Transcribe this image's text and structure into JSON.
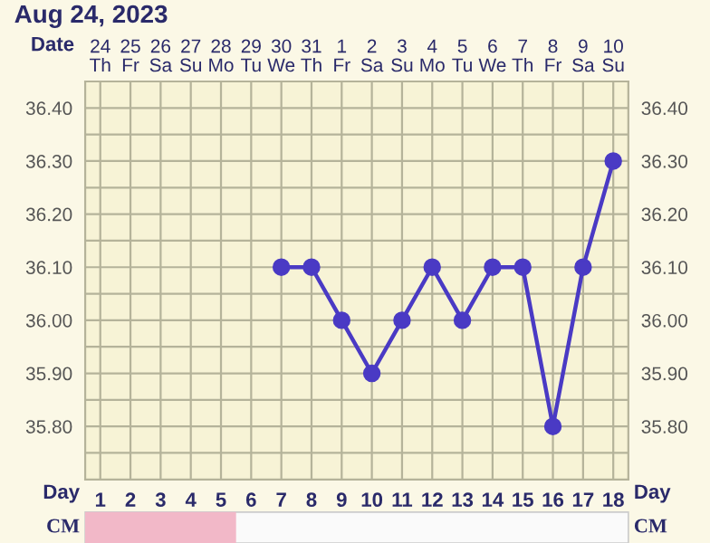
{
  "chart_data": {
    "type": "line",
    "title": "Aug 24, 2023",
    "xlabel": "Day",
    "categories": [
      "1",
      "2",
      "3",
      "4",
      "5",
      "6",
      "7",
      "8",
      "9",
      "10",
      "11",
      "12",
      "13",
      "14",
      "15",
      "16",
      "17",
      "18"
    ],
    "annotations": [
      "Date",
      "CM",
      "24\nTh",
      "25\nFr",
      "26\nSa",
      "27\nSu",
      "28\nMo",
      "29\nTu",
      "30\nWe",
      "31\nTh",
      "1\nFr",
      "2\nSa",
      "3\nSu",
      "4\nMo",
      "5\nTu",
      "6\nWe",
      "7\nTh",
      "8\nFr",
      "9\nSa",
      "10\nSu"
    ],
    "ylim": [
      35.7,
      36.45
    ],
    "yticks": [
      {
        "value": 35.75,
        "label": null
      },
      {
        "value": 35.8,
        "label": "35.80"
      },
      {
        "value": 35.85,
        "label": null
      },
      {
        "value": 35.9,
        "label": "35.90"
      },
      {
        "value": 35.95,
        "label": null
      },
      {
        "value": 36.0,
        "label": "36.00"
      },
      {
        "value": 36.05,
        "label": null
      },
      {
        "value": 36.1,
        "label": "36.10"
      },
      {
        "value": 36.15,
        "label": null
      },
      {
        "value": 36.2,
        "label": "36.20"
      },
      {
        "value": 36.25,
        "label": null
      },
      {
        "value": 36.3,
        "label": "36.30"
      },
      {
        "value": 36.35,
        "label": null
      },
      {
        "value": 36.4,
        "label": "36.40"
      }
    ],
    "y2lim": [
      35.7,
      36.45
    ],
    "y2ticks": [
      {
        "value": 35.75,
        "label": null
      },
      {
        "value": 35.8,
        "label": "35.80"
      },
      {
        "value": 35.85,
        "label": null
      },
      {
        "value": 35.9,
        "label": "35.90"
      },
      {
        "value": 35.95,
        "label": null
      },
      {
        "value": 36.0,
        "label": "36.00"
      },
      {
        "value": 36.05,
        "label": null
      },
      {
        "value": 36.1,
        "label": "36.10"
      },
      {
        "value": 36.15,
        "label": null
      },
      {
        "value": 36.2,
        "label": "36.20"
      },
      {
        "value": 36.25,
        "label": null
      },
      {
        "value": 36.3,
        "label": "36.30"
      },
      {
        "value": 36.35,
        "label": null
      },
      {
        "value": 36.4,
        "label": "36.40"
      }
    ],
    "series": [
      {
        "color": "#4a3ac4",
        "values": [
          null,
          null,
          null,
          null,
          null,
          null,
          36.1,
          36.1,
          36.0,
          35.9,
          36.0,
          36.1,
          36.0,
          36.1,
          36.1,
          35.8,
          36.1,
          36.3
        ]
      }
    ],
    "grid": true,
    "marker": "circle",
    "line_style": "solid"
  }
}
